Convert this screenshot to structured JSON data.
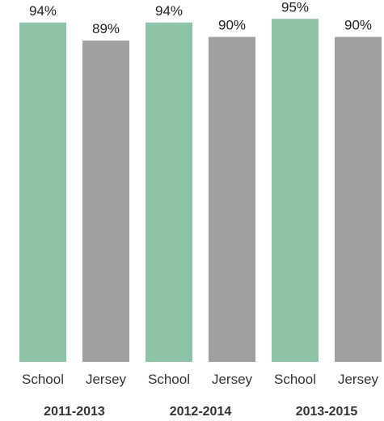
{
  "chart_data": {
    "type": "bar",
    "title": "",
    "xlabel": "",
    "ylabel": "",
    "ylim": [
      0,
      95
    ],
    "groups": [
      {
        "label": "2011-2013",
        "bars": [
          {
            "category": "School",
            "value": 94,
            "value_label": "94%"
          },
          {
            "category": "Jersey",
            "value": 89,
            "value_label": "89%"
          }
        ]
      },
      {
        "label": "2012-2014",
        "bars": [
          {
            "category": "School",
            "value": 94,
            "value_label": "94%"
          },
          {
            "category": "Jersey",
            "value": 90,
            "value_label": "90%"
          }
        ]
      },
      {
        "label": "2013-2015",
        "bars": [
          {
            "category": "School",
            "value": 95,
            "value_label": "95%"
          },
          {
            "category": "Jersey",
            "value": 90,
            "value_label": "90%"
          }
        ]
      }
    ],
    "colors": {
      "School": "#8dc3a7",
      "Jersey": "#a0a0a0"
    },
    "grid": false,
    "legend": "none"
  }
}
